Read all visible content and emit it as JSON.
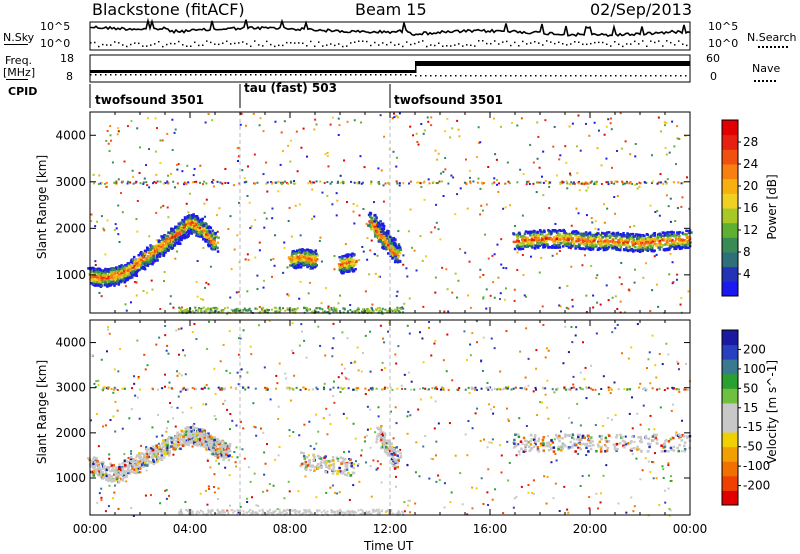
{
  "header": {
    "station": "Blackstone (fitACF)",
    "beam": "Beam 15",
    "date": "02/Sep/2013"
  },
  "left_labels": {
    "nsky": "N.Sky",
    "freq": "Freq.",
    "freq_unit": "[MHz]",
    "cpid": "CPID"
  },
  "right_labels": {
    "nsearch": "N.Search",
    "nave": "Nave"
  },
  "strip_ticks": {
    "noise_left": [
      "10^5",
      "10^0"
    ],
    "noise_right": [
      "10^5",
      "10^0"
    ],
    "freq_left": [
      "18",
      "8"
    ],
    "nave_right": [
      "60",
      "0"
    ]
  },
  "cpid_segments": [
    {
      "label": "twofsound 3501",
      "start_h": 0,
      "end_h": 6
    },
    {
      "label": "tau (fast) 503",
      "start_h": 6,
      "end_h": 12
    },
    {
      "label": "twofsound 3501",
      "start_h": 12,
      "end_h": 24
    }
  ],
  "axes": {
    "ylabel": "Slant Range [km]",
    "xlabel": "Time UT",
    "y_ticks": [
      "1000",
      "2000",
      "3000",
      "4000"
    ],
    "x_ticks": [
      "00:00",
      "04:00",
      "08:00",
      "12:00",
      "16:00",
      "20:00",
      "00:00"
    ]
  },
  "colorbars": {
    "power": {
      "title": "Power [dB]",
      "ticks": [
        "4",
        "8",
        "12",
        "16",
        "20",
        "24",
        "28"
      ],
      "colors": [
        "#1a1af0",
        "#2233b8",
        "#2f6f7a",
        "#3a8a55",
        "#5fb030",
        "#a8c828",
        "#f0d020",
        "#f8b010",
        "#f88010",
        "#f05010",
        "#e82010",
        "#e00000"
      ]
    },
    "velocity": {
      "title": "Velocity [m s^-1]",
      "ticks": [
        "200",
        "100",
        "50",
        "15",
        "-15",
        "-50",
        "-100",
        "-200"
      ],
      "colors": [
        "#1a1aa0",
        "#2840c0",
        "#3a7a90",
        "#2aa030",
        "#70c040",
        "#c8c8c8",
        "#c8c8c8",
        "#f0d000",
        "#f0a000",
        "#f07000",
        "#f04000",
        "#e00000"
      ]
    }
  },
  "chart_data": [
    {
      "type": "heatmap",
      "title": "Power [dB]",
      "xlabel": "Time UT",
      "ylabel": "Slant Range [km]",
      "xlim": [
        0,
        24
      ],
      "ylim": [
        180,
        4500
      ],
      "clim": [
        0,
        30
      ],
      "series": [
        {
          "name": "",
          "x": [
            0.0,
            0.5,
            1.0,
            1.5,
            2.0,
            2.5,
            3.0,
            3.5,
            4.0,
            4.5,
            5.0
          ],
          "y": [
            1000,
            950,
            1000,
            1100,
            1300,
            1500,
            1700,
            1900,
            2150,
            2000,
            1700
          ]
        },
        {
          "name": "",
          "x": [
            8.0,
            8.5,
            9.0
          ],
          "y": [
            1350,
            1400,
            1350
          ]
        },
        {
          "name": "",
          "x": [
            10.0,
            10.5
          ],
          "y": [
            1250,
            1300
          ]
        },
        {
          "name": "",
          "x": [
            11.2,
            11.6,
            12.0,
            12.3
          ],
          "y": [
            2200,
            1900,
            1650,
            1450
          ]
        },
        {
          "name": "",
          "x": [
            17.0,
            18.0,
            19.0,
            20.0,
            21.0,
            22.0,
            23.0,
            24.0
          ],
          "y": [
            1750,
            1800,
            1800,
            1750,
            1750,
            1700,
            1750,
            1800
          ]
        }
      ]
    },
    {
      "type": "heatmap",
      "title": "Velocity [m s^-1]",
      "xlabel": "Time UT",
      "ylabel": "Slant Range [km]",
      "xlim": [
        0,
        24
      ],
      "ylim": [
        180,
        4500
      ],
      "clim": [
        -200,
        200
      ],
      "series": [
        {
          "name": "",
          "x": [
            0.0,
            1.0,
            2.0,
            3.0,
            4.0,
            4.5,
            5.0,
            5.5
          ],
          "y": [
            1300,
            1100,
            1400,
            1700,
            2000,
            1900,
            1700,
            1600
          ]
        },
        {
          "name": "",
          "x": [
            8.5,
            10.5
          ],
          "y": [
            1400,
            1250
          ]
        },
        {
          "name": "",
          "x": [
            11.5,
            12.3
          ],
          "y": [
            2000,
            1400
          ]
        },
        {
          "name": "",
          "x": [
            17.0,
            20.0,
            24.0
          ],
          "y": [
            1800,
            1800,
            1800
          ]
        }
      ]
    }
  ]
}
